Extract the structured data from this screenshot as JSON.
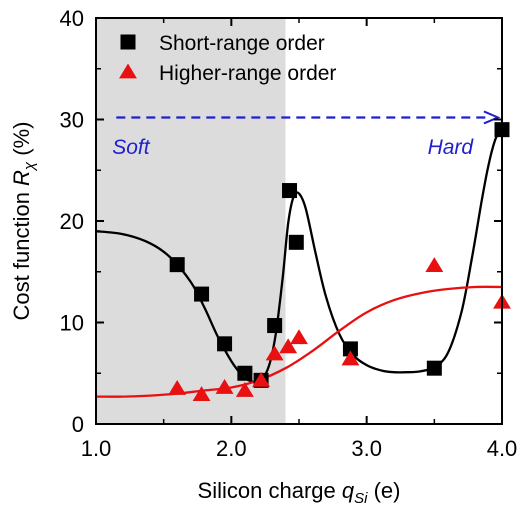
{
  "chart_data": {
    "type": "scatter",
    "xlabel": {
      "main": "Silicon charge ",
      "var": "q",
      "sub": "Si",
      "unit": " (e)"
    },
    "ylabel": {
      "main": "Cost function ",
      "var": "R",
      "sub": "χ",
      "unit": " (%)"
    },
    "xlim": [
      1.0,
      4.0
    ],
    "ylim": [
      0,
      40
    ],
    "x_ticks": [
      1.0,
      2.0,
      3.0,
      4.0
    ],
    "x_tick_labels": [
      "1.0",
      "2.0",
      "3.0",
      "4.0"
    ],
    "y_ticks": [
      0,
      10,
      20,
      30,
      40
    ],
    "y_tick_labels": [
      "0",
      "10",
      "20",
      "30",
      "40"
    ],
    "grid": false,
    "legend": "top-left",
    "shaded_region": {
      "x": [
        1.0,
        2.4
      ],
      "color": "#dcdcdc"
    },
    "annotations": [
      {
        "text": "Soft",
        "x": 1.12,
        "y": 28.2,
        "color": "#1f1fd0"
      },
      {
        "text": "Hard",
        "x": 3.45,
        "y": 28.2,
        "color": "#1f1fd0"
      }
    ],
    "arrow": {
      "from": [
        1.15,
        30.2
      ],
      "to": [
        3.97,
        30.2
      ],
      "color": "#1f1fd0",
      "style": "dashed"
    },
    "series": [
      {
        "name": "Short-range order",
        "marker": "square",
        "color": "#000000",
        "points": [
          [
            1.6,
            15.7
          ],
          [
            1.78,
            12.8
          ],
          [
            1.95,
            7.9
          ],
          [
            2.1,
            5.0
          ],
          [
            2.22,
            4.3
          ],
          [
            2.32,
            9.7
          ],
          [
            2.43,
            23.0
          ],
          [
            2.48,
            17.9
          ],
          [
            2.88,
            7.4
          ],
          [
            3.5,
            5.5
          ],
          [
            4.0,
            29.0
          ]
        ]
      },
      {
        "name": "Higher-range order",
        "marker": "triangle",
        "color": "#e81010",
        "points": [
          [
            1.6,
            3.5
          ],
          [
            1.78,
            2.9
          ],
          [
            1.95,
            3.6
          ],
          [
            2.1,
            3.3
          ],
          [
            2.22,
            4.3
          ],
          [
            2.32,
            6.9
          ],
          [
            2.42,
            7.6
          ],
          [
            2.5,
            8.5
          ],
          [
            2.88,
            6.4
          ],
          [
            3.5,
            15.6
          ],
          [
            4.0,
            12.0
          ]
        ]
      }
    ],
    "fit_curves": [
      {
        "color": "#000000",
        "points": [
          [
            1.0,
            19.0
          ],
          [
            1.2,
            18.7
          ],
          [
            1.4,
            17.8
          ],
          [
            1.55,
            16.4
          ],
          [
            1.7,
            14.0
          ],
          [
            1.8,
            11.5
          ],
          [
            1.9,
            8.6
          ],
          [
            2.0,
            6.2
          ],
          [
            2.08,
            4.8
          ],
          [
            2.15,
            4.2
          ],
          [
            2.22,
            4.3
          ],
          [
            2.28,
            5.8
          ],
          [
            2.33,
            9.0
          ],
          [
            2.38,
            14.5
          ],
          [
            2.42,
            19.8
          ],
          [
            2.46,
            22.4
          ],
          [
            2.5,
            22.7
          ],
          [
            2.55,
            21.2
          ],
          [
            2.62,
            17.0
          ],
          [
            2.7,
            12.5
          ],
          [
            2.8,
            8.8
          ],
          [
            2.9,
            6.8
          ],
          [
            3.0,
            5.8
          ],
          [
            3.1,
            5.3
          ],
          [
            3.2,
            5.1
          ],
          [
            3.3,
            5.1
          ],
          [
            3.4,
            5.2
          ],
          [
            3.5,
            5.6
          ],
          [
            3.6,
            7.0
          ],
          [
            3.7,
            11.0
          ],
          [
            3.78,
            16.5
          ],
          [
            3.85,
            22.0
          ],
          [
            3.9,
            25.5
          ],
          [
            3.95,
            28.0
          ],
          [
            4.0,
            29.2
          ]
        ]
      },
      {
        "color": "#e81010",
        "points": [
          [
            1.0,
            2.7
          ],
          [
            1.2,
            2.7
          ],
          [
            1.4,
            2.8
          ],
          [
            1.6,
            3.0
          ],
          [
            1.8,
            3.3
          ],
          [
            2.0,
            3.6
          ],
          [
            2.2,
            4.3
          ],
          [
            2.4,
            5.5
          ],
          [
            2.6,
            7.2
          ],
          [
            2.8,
            9.2
          ],
          [
            3.0,
            11.0
          ],
          [
            3.2,
            12.2
          ],
          [
            3.4,
            12.9
          ],
          [
            3.6,
            13.3
          ],
          [
            3.8,
            13.5
          ],
          [
            4.0,
            13.5
          ]
        ]
      }
    ]
  }
}
